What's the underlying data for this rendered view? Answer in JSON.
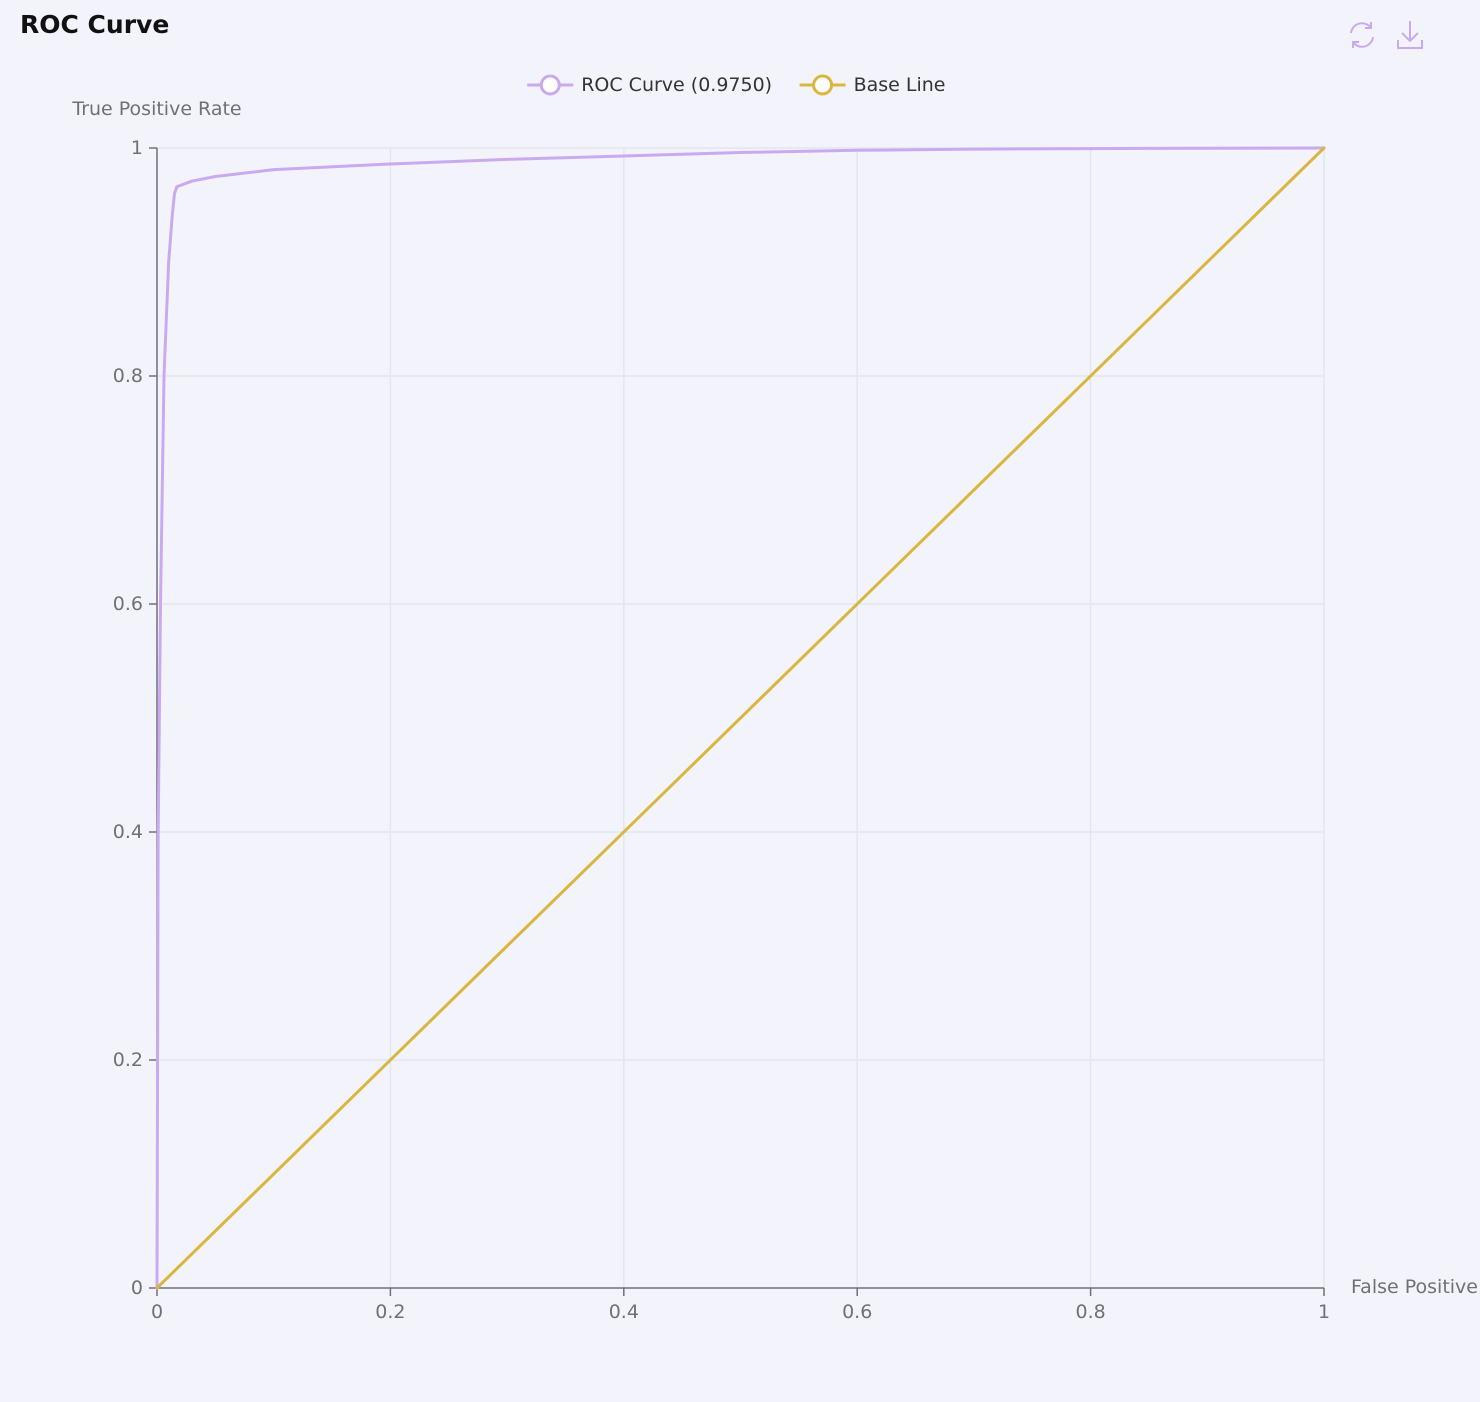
{
  "header": {
    "title": "ROC Curve"
  },
  "toolbox": {
    "items": [
      {
        "name": "refresh-icon"
      },
      {
        "name": "download-icon"
      }
    ]
  },
  "chart_data": {
    "type": "line",
    "title": "ROC Curve",
    "xlabel": "False Positive",
    "ylabel": "True Positive Rate",
    "xlim": [
      0,
      1
    ],
    "ylim": [
      0,
      1
    ],
    "x_ticks": [
      "0",
      "0.2",
      "0.4",
      "0.6",
      "0.8",
      "1"
    ],
    "y_ticks": [
      "0",
      "0.2",
      "0.4",
      "0.6",
      "0.8",
      "1"
    ],
    "grid": true,
    "legend": "top-center",
    "series": [
      {
        "name": "ROC Curve (0.9750)",
        "color": "#c9aaf0",
        "points": [
          [
            0,
            0
          ],
          [
            0.0005,
            0.2
          ],
          [
            0.001,
            0.4
          ],
          [
            0.003,
            0.6
          ],
          [
            0.006,
            0.8
          ],
          [
            0.01,
            0.9
          ],
          [
            0.013,
            0.94
          ],
          [
            0.015,
            0.96
          ],
          [
            0.017,
            0.966
          ],
          [
            0.03,
            0.971
          ],
          [
            0.05,
            0.975
          ],
          [
            0.1,
            0.981
          ],
          [
            0.2,
            0.986
          ],
          [
            0.3,
            0.99
          ],
          [
            0.4,
            0.993
          ],
          [
            0.5,
            0.996
          ],
          [
            0.6,
            0.998
          ],
          [
            0.7,
            0.999
          ],
          [
            0.8,
            0.9995
          ],
          [
            0.9,
            0.9998
          ],
          [
            1,
            1
          ]
        ]
      },
      {
        "name": "Base Line",
        "color": "#dab63e",
        "points": [
          [
            0,
            0
          ],
          [
            1,
            1
          ]
        ]
      }
    ]
  }
}
